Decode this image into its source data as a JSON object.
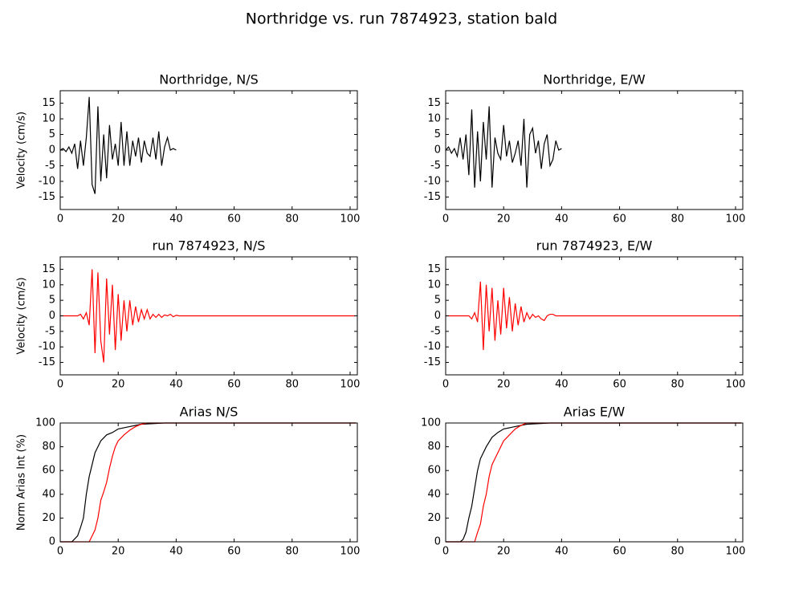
{
  "title": "Northridge vs. run 7874923, station bald",
  "chart_data": [
    {
      "type": "line",
      "title": "Northridge, N/S",
      "ylabel": "Velocity (cm/s)",
      "xlim": [
        0,
        102.5
      ],
      "xticks": [
        0,
        20,
        40,
        60,
        80,
        100
      ],
      "ylim": [
        -19,
        19
      ],
      "yticks": [
        -15,
        -10,
        -5,
        0,
        5,
        10,
        15
      ],
      "x": [
        0,
        1,
        2,
        3,
        4,
        5,
        6,
        7,
        8,
        9,
        10,
        11,
        12,
        13,
        14,
        15,
        16,
        17,
        18,
        19,
        20,
        21,
        22,
        23,
        24,
        25,
        26,
        27,
        28,
        29,
        30,
        31,
        32,
        33,
        34,
        35,
        36,
        37,
        38,
        39,
        40
      ],
      "series": [
        {
          "color": "#000000",
          "values": [
            0,
            0.5,
            -0.5,
            1,
            -1,
            2,
            -6,
            3,
            -5,
            4,
            17,
            -11,
            -14,
            14,
            -10,
            5,
            -9,
            8,
            -3,
            2,
            -5,
            9,
            -5,
            6,
            -5,
            3,
            -2,
            4,
            -4,
            3,
            -1,
            -2,
            4,
            -3,
            6,
            -5,
            1,
            4,
            0,
            0.5,
            0
          ]
        }
      ]
    },
    {
      "type": "line",
      "title": "Northridge, E/W",
      "xlim": [
        0,
        102.5
      ],
      "xticks": [
        0,
        20,
        40,
        60,
        80,
        100
      ],
      "ylim": [
        -19,
        19
      ],
      "yticks": [
        -15,
        -10,
        -5,
        0,
        5,
        10,
        15
      ],
      "x": [
        0,
        1,
        2,
        3,
        4,
        5,
        6,
        7,
        8,
        9,
        10,
        11,
        12,
        13,
        14,
        15,
        16,
        17,
        18,
        19,
        20,
        21,
        22,
        23,
        24,
        25,
        26,
        27,
        28,
        29,
        30,
        31,
        32,
        33,
        34,
        35,
        36,
        37,
        38,
        39,
        40
      ],
      "series": [
        {
          "color": "#000000",
          "values": [
            0,
            1,
            -1,
            0.5,
            -2,
            4,
            -3,
            5,
            -8,
            13,
            -12,
            6,
            -10,
            9,
            -3,
            14,
            -12,
            4,
            -1,
            -3,
            8,
            -2,
            3,
            -4,
            -1,
            3,
            -5,
            10,
            -12,
            5,
            7,
            -1,
            3,
            -6,
            2,
            5,
            -5,
            -3,
            3,
            0,
            0.5
          ]
        }
      ]
    },
    {
      "type": "line",
      "title": "run 7874923, N/S",
      "ylabel": "Velocity (cm/s)",
      "xlim": [
        0,
        102.5
      ],
      "xticks": [
        0,
        20,
        40,
        60,
        80,
        100
      ],
      "ylim": [
        -19,
        19
      ],
      "yticks": [
        -15,
        -10,
        -5,
        0,
        5,
        10,
        15
      ],
      "x": [
        0,
        6,
        7,
        8,
        9,
        10,
        11,
        12,
        13,
        14,
        15,
        16,
        17,
        18,
        19,
        20,
        21,
        22,
        23,
        24,
        25,
        26,
        27,
        28,
        29,
        30,
        31,
        32,
        33,
        34,
        35,
        36,
        37,
        38,
        39,
        40,
        41,
        43,
        60,
        80,
        102
      ],
      "series": [
        {
          "color": "#ff0000",
          "values": [
            0,
            0,
            0.5,
            -1,
            1,
            -3,
            15,
            -12,
            14,
            -8,
            -15,
            12,
            -6,
            10,
            -11,
            7,
            -8,
            5,
            -5,
            5,
            -3,
            3,
            -2,
            2,
            -1,
            2,
            -1,
            0.5,
            -0.5,
            0.5,
            -0.5,
            0.3,
            0,
            0.5,
            -0.3,
            0.2,
            0,
            0,
            0,
            0,
            0
          ]
        }
      ]
    },
    {
      "type": "line",
      "title": "run 7874923, E/W",
      "xlim": [
        0,
        102.5
      ],
      "xticks": [
        0,
        20,
        40,
        60,
        80,
        100
      ],
      "ylim": [
        -19,
        19
      ],
      "yticks": [
        -15,
        -10,
        -5,
        0,
        5,
        10,
        15
      ],
      "x": [
        0,
        8,
        9,
        10,
        11,
        12,
        13,
        14,
        15,
        16,
        17,
        18,
        19,
        20,
        21,
        22,
        23,
        24,
        25,
        26,
        27,
        28,
        29,
        30,
        31,
        32,
        33,
        34,
        35,
        36,
        37,
        38,
        40,
        60,
        80,
        102
      ],
      "series": [
        {
          "color": "#ff0000",
          "values": [
            0,
            0,
            -1,
            1,
            -2,
            11,
            -11,
            10,
            -5,
            9,
            -8,
            5,
            -6,
            9,
            -4,
            6,
            -5,
            4,
            -3,
            3,
            -2,
            1,
            -1,
            0.5,
            -0.5,
            0,
            -1,
            -1.5,
            0,
            0.5,
            0.5,
            0,
            0,
            0,
            0,
            0
          ]
        }
      ]
    },
    {
      "type": "line",
      "title": "Arias N/S",
      "ylabel": "Norm Arias Int (%)",
      "xlim": [
        0,
        102.5
      ],
      "xticks": [
        0,
        20,
        40,
        60,
        80,
        100
      ],
      "ylim": [
        0,
        100
      ],
      "yticks": [
        0,
        20,
        40,
        60,
        80,
        100
      ],
      "series": [
        {
          "color": "#000000",
          "x": [
            0,
            4,
            6,
            7,
            8,
            9,
            10,
            11,
            12,
            13,
            14,
            16,
            18,
            20,
            24,
            28,
            32,
            36,
            40,
            102
          ],
          "values": [
            0,
            0,
            5,
            12,
            20,
            40,
            55,
            65,
            75,
            80,
            85,
            90,
            92,
            95,
            97,
            99,
            99.5,
            100,
            100,
            100
          ]
        },
        {
          "color": "#ff0000",
          "x": [
            0,
            10,
            11,
            12,
            13,
            14,
            15,
            16,
            17,
            18,
            19,
            20,
            22,
            24,
            26,
            28,
            30,
            102
          ],
          "values": [
            0,
            0,
            5,
            10,
            20,
            35,
            42,
            50,
            62,
            72,
            80,
            85,
            90,
            94,
            97,
            99,
            100,
            100
          ]
        }
      ]
    },
    {
      "type": "line",
      "title": "Arias E/W",
      "xlim": [
        0,
        102.5
      ],
      "xticks": [
        0,
        20,
        40,
        60,
        80,
        100
      ],
      "ylim": [
        0,
        100
      ],
      "yticks": [
        0,
        20,
        40,
        60,
        80,
        100
      ],
      "series": [
        {
          "color": "#000000",
          "x": [
            0,
            5,
            6,
            7,
            8,
            9,
            10,
            11,
            12,
            14,
            16,
            18,
            20,
            24,
            28,
            32,
            36,
            40,
            102
          ],
          "values": [
            0,
            0,
            2,
            8,
            20,
            30,
            45,
            60,
            70,
            80,
            88,
            92,
            95,
            97,
            99,
            99.5,
            100,
            100,
            100
          ]
        },
        {
          "color": "#ff0000",
          "x": [
            0,
            10,
            11,
            12,
            13,
            14,
            15,
            16,
            17,
            18,
            20,
            22,
            24,
            26,
            28,
            102
          ],
          "values": [
            0,
            0,
            8,
            15,
            30,
            40,
            55,
            65,
            70,
            75,
            85,
            90,
            95,
            98,
            100,
            100
          ]
        }
      ]
    }
  ]
}
